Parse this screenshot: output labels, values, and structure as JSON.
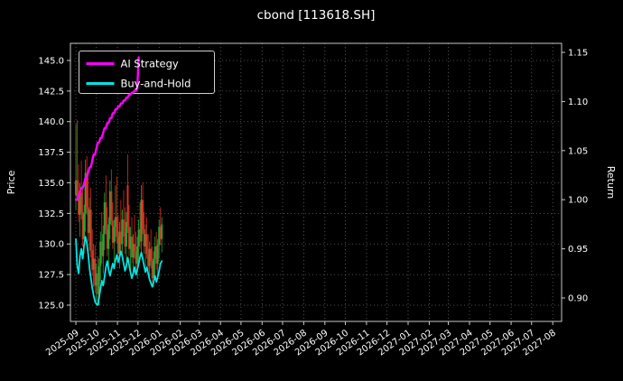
{
  "chart_data": {
    "type": "candlestick+line",
    "title": "cbond [113618.SH]",
    "background": "#000000",
    "text_color": "#ffffff",
    "grid": {
      "on": true,
      "style": "dotted",
      "color": "#8a8a8a"
    },
    "x_axis": {
      "start_date": "2025-09-01",
      "xlim_days": [
        -8,
        712
      ],
      "tick_labels": [
        "2025-09",
        "2025-10",
        "2025-11",
        "2025-12",
        "2026-01",
        "2026-02",
        "2026-03",
        "2026-04",
        "2026-05",
        "2026-06",
        "2026-07",
        "2026-08",
        "2026-09",
        "2026-10",
        "2026-11",
        "2026-12",
        "2027-01",
        "2027-02",
        "2027-03",
        "2027-04",
        "2027-05",
        "2027-06",
        "2027-07",
        "2027-08"
      ]
    },
    "left_axis": {
      "label": "Price",
      "lim": [
        123.67,
        146.4
      ],
      "ticks": [
        125.0,
        127.5,
        130.0,
        132.5,
        135.0,
        137.5,
        140.0,
        142.5,
        145.0
      ],
      "tick_labels": [
        "125.0",
        "127.5",
        "130.0",
        "132.5",
        "135.0",
        "137.5",
        "140.0",
        "142.5",
        "145.0"
      ]
    },
    "right_axis": {
      "label": "Return",
      "lim": [
        0.8761,
        1.1592
      ],
      "ticks": [
        0.9,
        0.95,
        1.0,
        1.05,
        1.1,
        1.15
      ],
      "tick_labels": [
        "0.90",
        "0.95",
        "1.00",
        "1.05",
        "1.10",
        "1.15"
      ]
    },
    "legend": [
      {
        "label": "AI Strategy",
        "color": "#ff00ff"
      },
      {
        "label": "Buy-and-Hold",
        "color": "#00e5e5"
      }
    ],
    "candles": {
      "up_color": "#1faa34",
      "down_color": "#d93025",
      "dates": [
        "2025-09-01",
        "2025-09-03",
        "2025-09-05",
        "2025-09-07",
        "2025-09-09",
        "2025-09-11",
        "2025-09-13",
        "2025-09-15",
        "2025-09-17",
        "2025-09-19",
        "2025-09-21",
        "2025-09-23",
        "2025-09-25",
        "2025-09-27",
        "2025-09-29",
        "2025-10-01",
        "2025-10-03",
        "2025-10-05",
        "2025-10-07",
        "2025-10-09",
        "2025-10-11",
        "2025-10-13",
        "2025-10-15",
        "2025-10-17",
        "2025-10-19",
        "2025-10-21",
        "2025-10-23",
        "2025-10-25",
        "2025-10-27",
        "2025-10-29",
        "2025-10-31",
        "2025-11-02",
        "2025-11-04",
        "2025-11-06",
        "2025-11-08",
        "2025-11-10",
        "2025-11-12",
        "2025-11-14",
        "2025-11-16",
        "2025-11-18",
        "2025-11-20",
        "2025-11-22",
        "2025-11-24",
        "2025-11-26",
        "2025-11-28",
        "2025-11-30",
        "2025-12-02",
        "2025-12-04",
        "2025-12-06",
        "2025-12-08",
        "2025-12-10",
        "2025-12-12",
        "2025-12-14",
        "2025-12-16",
        "2025-12-18",
        "2025-12-20",
        "2025-12-22",
        "2025-12-24",
        "2025-12-26",
        "2025-12-28",
        "2025-12-30",
        "2026-01-01",
        "2026-01-03",
        "2026-01-05"
      ],
      "open": [
        134.0,
        135.2,
        133.9,
        132.4,
        134.2,
        132.6,
        130.4,
        132.5,
        135.8,
        133.0,
        130.9,
        132.8,
        129.5,
        127.9,
        128.8,
        126.6,
        127.6,
        125.9,
        128.2,
        130.2,
        129.0,
        130.8,
        133.4,
        131.2,
        129.6,
        131.6,
        134.3,
        131.9,
        130.1,
        131.4,
        132.2,
        130.6,
        129.2,
        131.0,
        130.0,
        132.0,
        131.0,
        129.8,
        134.8,
        131.4,
        129.6,
        130.6,
        128.9,
        130.0,
        129.4,
        128.4,
        129.8,
        131.2,
        130.2,
        133.6,
        131.2,
        129.8,
        130.8,
        129.2,
        128.2,
        129.6,
        128.6,
        127.2,
        128.8,
        129.8,
        128.4,
        129.9,
        131.4,
        130.4
      ],
      "high": [
        139.8,
        140.1,
        136.5,
        135.0,
        136.8,
        134.5,
        133.2,
        136.9,
        137.2,
        135.4,
        133.8,
        134.6,
        131.2,
        130.0,
        129.9,
        128.4,
        129.0,
        128.8,
        131.0,
        132.6,
        131.5,
        134.2,
        135.6,
        133.0,
        132.2,
        135.2,
        136.1,
        133.4,
        132.0,
        134.8,
        135.5,
        132.4,
        131.8,
        133.6,
        132.8,
        134.4,
        133.0,
        132.6,
        137.3,
        133.2,
        131.4,
        132.2,
        130.8,
        132.4,
        131.0,
        130.6,
        132.0,
        133.4,
        134.8,
        135.0,
        132.6,
        131.6,
        132.2,
        130.8,
        130.2,
        131.2,
        129.8,
        129.4,
        130.6,
        131.0,
        130.4,
        132.0,
        133.0,
        132.2
      ],
      "low": [
        132.8,
        133.5,
        131.8,
        130.6,
        132.0,
        129.8,
        129.2,
        131.0,
        132.4,
        130.2,
        129.4,
        128.9,
        127.4,
        126.5,
        126.0,
        125.3,
        125.2,
        125.0,
        127.0,
        128.4,
        127.6,
        129.5,
        130.8,
        129.0,
        128.2,
        130.4,
        131.5,
        129.6,
        128.5,
        130.2,
        130.0,
        128.6,
        128.0,
        129.4,
        128.8,
        130.6,
        129.2,
        128.6,
        130.9,
        129.0,
        127.9,
        128.4,
        127.5,
        128.8,
        127.8,
        127.2,
        128.4,
        129.6,
        129.0,
        130.8,
        129.2,
        128.2,
        128.8,
        127.6,
        127.0,
        128.0,
        126.8,
        126.5,
        127.4,
        127.9,
        127.2,
        128.8,
        129.9,
        129.3
      ],
      "close": [
        135.2,
        133.9,
        132.4,
        134.2,
        132.6,
        130.4,
        132.5,
        135.8,
        133.0,
        130.9,
        132.8,
        129.5,
        127.9,
        128.8,
        126.6,
        127.6,
        125.9,
        128.2,
        130.2,
        129.0,
        130.8,
        133.4,
        131.2,
        129.6,
        131.6,
        134.3,
        131.9,
        130.1,
        131.4,
        132.2,
        130.6,
        129.2,
        131.0,
        130.0,
        132.0,
        131.0,
        129.8,
        131.8,
        131.4,
        129.6,
        130.6,
        128.9,
        130.0,
        129.4,
        128.4,
        129.8,
        131.2,
        130.2,
        133.6,
        131.2,
        129.8,
        130.8,
        129.2,
        128.2,
        129.6,
        128.6,
        127.2,
        128.8,
        129.8,
        128.4,
        129.9,
        131.4,
        130.4,
        131.6
      ]
    },
    "series": [
      {
        "name": "AI Strategy",
        "axis": "right",
        "color": "#ff00ff",
        "width": 2.4,
        "dates": [
          "2025-09-01",
          "2025-09-03",
          "2025-09-05",
          "2025-09-07",
          "2025-09-09",
          "2025-09-11",
          "2025-09-13",
          "2025-09-15",
          "2025-09-17",
          "2025-09-19",
          "2025-09-21",
          "2025-09-23",
          "2025-09-25",
          "2025-09-27",
          "2025-09-29",
          "2025-10-01",
          "2025-10-03",
          "2025-10-05",
          "2025-10-07",
          "2025-10-09",
          "2025-10-11",
          "2025-10-13",
          "2025-10-15",
          "2025-10-17",
          "2025-10-19",
          "2025-10-21",
          "2025-10-23",
          "2025-10-25",
          "2025-10-27",
          "2025-10-29",
          "2025-10-31",
          "2025-11-02",
          "2025-11-04",
          "2025-11-06",
          "2025-11-08",
          "2025-11-10",
          "2025-11-12",
          "2025-11-14",
          "2025-11-16",
          "2025-11-18",
          "2025-11-20",
          "2025-11-22",
          "2025-11-24",
          "2025-11-26",
          "2025-11-28",
          "2025-11-30",
          "2025-12-02"
        ],
        "values": [
          1.0,
          1.0,
          1.004,
          1.008,
          1.012,
          1.012,
          1.016,
          1.022,
          1.022,
          1.028,
          1.033,
          1.033,
          1.04,
          1.046,
          1.046,
          1.052,
          1.058,
          1.058,
          1.063,
          1.063,
          1.068,
          1.073,
          1.073,
          1.078,
          1.078,
          1.083,
          1.083,
          1.088,
          1.088,
          1.092,
          1.092,
          1.095,
          1.095,
          1.098,
          1.098,
          1.101,
          1.101,
          1.104,
          1.104,
          1.107,
          1.107,
          1.109,
          1.109,
          1.111,
          1.111,
          1.113,
          1.145
        ]
      },
      {
        "name": "Buy-and-Hold",
        "axis": "left",
        "color": "#00e5e5",
        "width": 1.8,
        "values": [
          130.4,
          128.2,
          127.6,
          129.0,
          129.6,
          128.8,
          129.9,
          130.6,
          130.1,
          129.2,
          128.0,
          127.2,
          126.4,
          125.8,
          125.3,
          125.1,
          125.0,
          125.6,
          126.3,
          127.0,
          126.6,
          127.3,
          128.1,
          128.6,
          127.9,
          127.4,
          127.9,
          128.4,
          128.0,
          128.7,
          129.1,
          128.5,
          128.9,
          129.4,
          129.0,
          128.4,
          127.8,
          128.2,
          128.9,
          128.3,
          127.7,
          127.2,
          127.6,
          128.1,
          127.5,
          127.9,
          128.4,
          128.9,
          129.3,
          128.8,
          128.2,
          127.7,
          128.1,
          127.6,
          127.1,
          126.8,
          126.5,
          126.9,
          127.4,
          126.9,
          127.3,
          127.8,
          128.4,
          128.6
        ]
      }
    ]
  }
}
